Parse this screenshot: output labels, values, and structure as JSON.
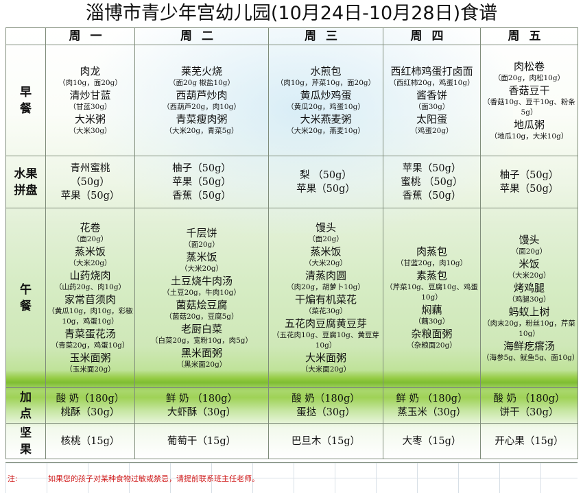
{
  "title": "淄博市青少年宫幼儿园(10月24日-10月28日)食谱",
  "days": [
    "周一",
    "周二",
    "周三",
    "周四",
    "周五"
  ],
  "meals": {
    "breakfast": "早餐",
    "fruit": "水果拼盘",
    "lunch": "午餐",
    "snack": "加点",
    "nuts": "坚果"
  },
  "breakfast": [
    [
      "肉龙",
      "（肉10g，面20g）",
      "清炒甘蓝",
      "（甘蓝30g）",
      "大米粥",
      "（大米30g）"
    ],
    [
      "莱芜火烧",
      "（面20g 椒盐10g）",
      "西葫芦炒肉",
      "（西葫芦20g，肉10g）",
      "青菜瘦肉粥",
      "（大米20g，青菜5g）"
    ],
    [
      "水煎包",
      "（肉10g，芹菜10g，面20g）",
      "黄瓜炒鸡蛋",
      "（黄瓜20g，鸡蛋10g）",
      "大米燕麦粥",
      "（大米20g，燕麦10g）"
    ],
    [
      "西红柿鸡蛋打卤面",
      "（西红柿20g，鸡蛋10g）",
      "酱香饼",
      "（面30g）",
      "太阳蛋",
      "（鸡蛋20g）"
    ],
    [
      "肉松卷",
      "（面20g，肉松10g）",
      "香菇豆干",
      "（香菇10g、豆干10g、粉条5g）",
      "地瓜粥",
      "（地瓜10g，大米10g）"
    ]
  ],
  "fruit": [
    [
      "青州蜜桃",
      "（50g）",
      "苹果（50g）"
    ],
    [
      "柚子（50g）",
      "苹果（50g）",
      "香蕉（50g）"
    ],
    [
      "梨 （50g）",
      "苹果（50g）"
    ],
    [
      "苹果（50g）",
      "蜜桃 （50g）",
      "香蕉（50g）"
    ],
    [
      "柚子（50g）",
      "苹果（50g）"
    ]
  ],
  "lunch": [
    [
      "花卷",
      "（面20g）",
      "蒸米饭",
      "（大米20g）",
      "山药烧肉",
      "（山药20g、肉10g）",
      "家常苜须肉",
      "（黄瓜10g，肉10g，彩椒10g，鸡蛋10g）",
      "青菜蛋花汤",
      "（青菜20g，鸡蛋10g）",
      "玉米面粥",
      "（玉米面20g）"
    ],
    [
      "千层饼",
      "（面20g）",
      "蒸米饭",
      "（大米20g）",
      "土豆烧牛肉汤",
      "（土豆20g，牛肉10g）",
      "菌菇烩豆腐",
      "（菌菇20g，豆腐5g）",
      "老厨白菜",
      "（白菜20g，宽粉10g，肉5g）",
      "黑米面粥",
      "（黑米面20g）"
    ],
    [
      "馒头",
      "（面20g）",
      "蒸米饭",
      "（大米20g）",
      "清蒸肉圆",
      "（肉20g，胡萝卜10g）",
      "干煸有机菜花",
      "（菜花30g）",
      "五花肉豆腐黄豆芽",
      "（五花肉10g、豆腐10g、黄豆芽10g）",
      "大米面粥",
      "（大米面20g）"
    ],
    [
      "肉蒸包",
      "（甘蓝20g，肉10g）",
      "素蒸包",
      "（芹菜10g、豆腐10g、鸡蛋10g）",
      "焖藕",
      "（藕30g）",
      "杂粮面粥",
      "（杂粮面20g）"
    ],
    [
      "馒头",
      "（面20g）",
      "米饭",
      "（大米20g）",
      "烤鸡腿",
      "（鸡腿30g）",
      "蚂蚁上树",
      "（肉末20g，粉丝10g，芹菜10g）",
      "海鲜疙瘩汤",
      "（海参5g、鱿鱼5g、面10g）"
    ]
  ],
  "snack": [
    [
      "酸 奶（180g）",
      "桃酥（30g）"
    ],
    [
      "鲜 奶 （180g）",
      "大虾酥（30g）"
    ],
    [
      "酸 奶（180g）",
      "蛋挞（30g）"
    ],
    [
      "鲜 奶 （180g）",
      "蒸玉米（30g）"
    ],
    [
      "酸 奶 （180g）",
      "饼干（30g）"
    ]
  ],
  "nuts": [
    "核桃（15g）",
    "葡萄干（15g）",
    "巴旦木（15g）",
    "大枣（15g）",
    "开心果（15g）"
  ],
  "footer": {
    "label": "注:",
    "message": "如果您的孩子对某种食物过敏或禁忌，请提前联系班主任老师。"
  }
}
